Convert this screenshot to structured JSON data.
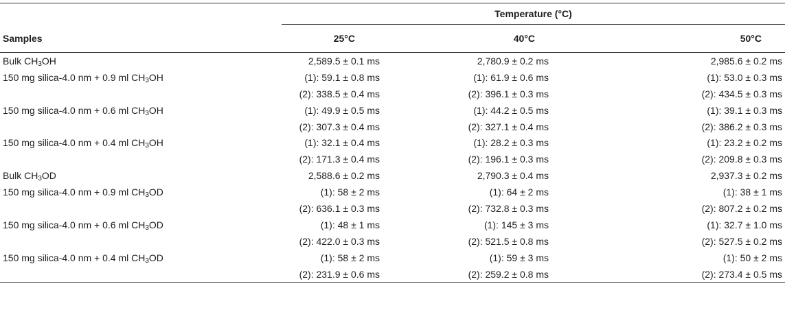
{
  "table": {
    "header": {
      "temperature_label": "Temperature (°C)",
      "samples_label": "Samples",
      "temp_columns": [
        "25°C",
        "40°C",
        "50°C"
      ]
    },
    "rows": [
      {
        "sample_pre": "Bulk CH",
        "sample_sub": "3",
        "sample_post": "OH",
        "t25": "2,589.5 ± 0.1 ms",
        "t40": "2,780.9 ± 0.2 ms",
        "t50": "2,985.6 ± 0.2 ms"
      },
      {
        "sample_pre": "150 mg silica-4.0 nm + 0.9 ml CH",
        "sample_sub": "3",
        "sample_post": "OH",
        "t25": "(1): 59.1 ± 0.8 ms",
        "t40": "(1): 61.9 ± 0.6 ms",
        "t50": "(1): 53.0 ± 0.3 ms"
      },
      {
        "sample_pre": "",
        "sample_sub": "",
        "sample_post": "",
        "t25": "(2): 338.5 ± 0.4 ms",
        "t40": "(2): 396.1 ± 0.3 ms",
        "t50": "(2): 434.5 ± 0.3 ms"
      },
      {
        "sample_pre": "150 mg silica-4.0 nm + 0.6 ml CH",
        "sample_sub": "3",
        "sample_post": "OH",
        "t25": "(1): 49.9 ± 0.5 ms",
        "t40": "(1): 44.2 ± 0.5 ms",
        "t50": "(1): 39.1 ± 0.3 ms"
      },
      {
        "sample_pre": "",
        "sample_sub": "",
        "sample_post": "",
        "t25": "(2): 307.3 ± 0.4 ms",
        "t40": "(2): 327.1 ± 0.4 ms",
        "t50": "(2): 386.2 ± 0.3 ms"
      },
      {
        "sample_pre": "150 mg silica-4.0 nm + 0.4 ml CH",
        "sample_sub": "3",
        "sample_post": "OH",
        "t25": "(1): 32.1 ± 0.4 ms",
        "t40": "(1): 28.2 ± 0.3 ms",
        "t50": "(1): 23.2 ± 0.2 ms"
      },
      {
        "sample_pre": "",
        "sample_sub": "",
        "sample_post": "",
        "t25": "(2): 171.3 ± 0.4 ms",
        "t40": "(2): 196.1 ± 0.3 ms",
        "t50": "(2): 209.8 ± 0.3 ms"
      },
      {
        "sample_pre": "Bulk CH",
        "sample_sub": "3",
        "sample_post": "OD",
        "t25": "2,588.6 ± 0.2 ms",
        "t40": "2,790.3 ± 0.4 ms",
        "t50": "2,937.3 ± 0.2 ms"
      },
      {
        "sample_pre": "150 mg silica-4.0 nm + 0.9 ml CH",
        "sample_sub": "3",
        "sample_post": "OD",
        "t25": "(1): 58 ± 2 ms",
        "t40": "(1): 64 ± 2 ms",
        "t50": "(1): 38 ± 1 ms"
      },
      {
        "sample_pre": "",
        "sample_sub": "",
        "sample_post": "",
        "t25": "(2): 636.1 ± 0.3 ms",
        "t40": "(2): 732.8 ± 0.3 ms",
        "t50": "(2): 807.2 ± 0.2 ms"
      },
      {
        "sample_pre": "150 mg silica-4.0 nm + 0.6 ml CH",
        "sample_sub": "3",
        "sample_post": "OD",
        "t25": "(1): 48 ± 1 ms",
        "t40": "(1): 145 ± 3 ms",
        "t50": "(1): 32.7 ± 1.0 ms"
      },
      {
        "sample_pre": "",
        "sample_sub": "",
        "sample_post": "",
        "t25": "(2): 422.0 ± 0.3 ms",
        "t40": "(2): 521.5 ± 0.8 ms",
        "t50": "(2): 527.5 ± 0.2 ms"
      },
      {
        "sample_pre": "150 mg silica-4.0 nm + 0.4 ml CH",
        "sample_sub": "3",
        "sample_post": "OD",
        "t25": "(1): 58 ± 2 ms",
        "t40": "(1): 59 ± 3 ms",
        "t50": "(1): 50 ± 2 ms"
      },
      {
        "sample_pre": "",
        "sample_sub": "",
        "sample_post": "",
        "t25": "(2): 231.9 ± 0.6 ms",
        "t40": "(2): 259.2 ± 0.8 ms",
        "t50": "(2): 273.4 ± 0.5 ms"
      }
    ]
  }
}
